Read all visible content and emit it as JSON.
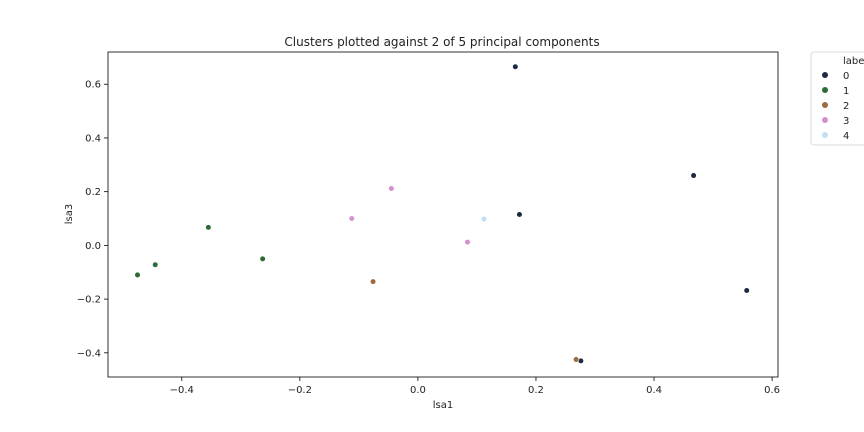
{
  "chart_data": {
    "type": "scatter",
    "title": "Clusters plotted against 2 of 5 principal components",
    "xlabel": "lsa1",
    "ylabel": "lsa3",
    "xlim": [
      -0.525,
      0.61
    ],
    "ylim": [
      -0.49,
      0.72
    ],
    "xticks": [
      -0.4,
      -0.2,
      0.0,
      0.2,
      0.4,
      0.6
    ],
    "xtick_labels": [
      "−0.4",
      "−0.2",
      "0.0",
      "0.2",
      "0.4",
      "0.6"
    ],
    "yticks": [
      -0.4,
      -0.2,
      0.0,
      0.2,
      0.4,
      0.6
    ],
    "ytick_labels": [
      "−0.4",
      "−0.2",
      "0.0",
      "0.2",
      "0.4",
      "0.6"
    ],
    "grid": false,
    "legend": {
      "title": "label",
      "placement": "outside-right-top"
    },
    "series": [
      {
        "name": "0",
        "color": "#1b2a41",
        "points": [
          [
            0.165,
            0.665
          ],
          [
            0.172,
            0.115
          ],
          [
            0.467,
            0.26
          ],
          [
            0.557,
            -0.168
          ],
          [
            0.276,
            -0.43
          ]
        ]
      },
      {
        "name": "1",
        "color": "#2e6b34",
        "points": [
          [
            -0.475,
            -0.11
          ],
          [
            -0.445,
            -0.072
          ],
          [
            -0.355,
            0.067
          ],
          [
            -0.263,
            -0.05
          ]
        ]
      },
      {
        "name": "2",
        "color": "#9c6a3c",
        "points": [
          [
            -0.076,
            -0.135
          ],
          [
            0.268,
            -0.425
          ]
        ]
      },
      {
        "name": "3",
        "color": "#d68fcf",
        "points": [
          [
            -0.112,
            0.1
          ],
          [
            -0.045,
            0.212
          ],
          [
            0.084,
            0.012
          ]
        ]
      },
      {
        "name": "4",
        "color": "#c2dff2",
        "points": [
          [
            0.112,
            0.098
          ]
        ]
      }
    ]
  }
}
